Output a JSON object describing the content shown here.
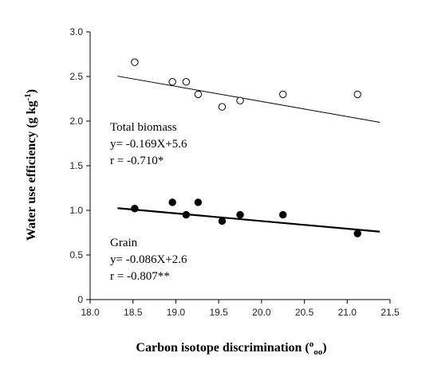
{
  "chart_data": {
    "type": "scatter",
    "xlabel": "Carbon isotope discrimination (‰)",
    "xlabel_main": "Carbon isotope discrimination (",
    "xlabel_unit_sup": "o",
    "xlabel_unit_sub": "oo",
    "xlabel_end": ")",
    "ylabel": "Water use efficiency (g kg-1)",
    "ylabel_main": "Water use efficiency (g kg",
    "ylabel_sup": "-1",
    "ylabel_end": ")",
    "xlim": [
      18.0,
      21.5
    ],
    "ylim": [
      0,
      3.0
    ],
    "xticks": [
      "18.0",
      "18.5",
      "19.0",
      "19.5",
      "20.0",
      "20.5",
      "21.0",
      "21.5"
    ],
    "yticks": [
      "0",
      "0.5",
      "1.0",
      "1.5",
      "2.0",
      "2.5",
      "3.0"
    ],
    "grid": false,
    "series": [
      {
        "name": "Total biomass",
        "marker": "open-circle",
        "x": [
          18.52,
          18.96,
          19.12,
          19.26,
          19.54,
          19.75,
          20.25,
          21.12
        ],
        "y": [
          2.66,
          2.44,
          2.44,
          2.3,
          2.16,
          2.23,
          2.3,
          2.3
        ],
        "fit": {
          "slope": -0.169,
          "intercept": 5.6,
          "x_range": [
            18.32,
            21.38
          ],
          "line_width": 1.0
        },
        "annotation": [
          "Total biomass",
          "y= -0.169X+5.6",
          "r = -0.710*"
        ]
      },
      {
        "name": "Grain",
        "marker": "filled-circle",
        "x": [
          18.52,
          18.96,
          19.12,
          19.26,
          19.54,
          19.75,
          20.25,
          21.12
        ],
        "y": [
          1.02,
          1.09,
          0.95,
          1.09,
          0.88,
          0.95,
          0.95,
          0.74
        ],
        "fit": {
          "slope": -0.086,
          "intercept": 2.6,
          "x_range": [
            18.32,
            21.38
          ],
          "line_width": 2.2
        },
        "annotation": [
          "Grain",
          "y= -0.086X+2.6",
          "r = -0.807**"
        ]
      }
    ]
  }
}
